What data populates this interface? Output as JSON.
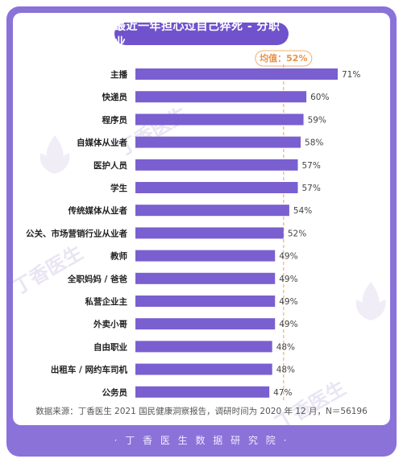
{
  "title": "最近一年担心过自己猝死 - 分职业",
  "average_label": "均值：52%",
  "average_value": 52,
  "source_note": "数据来源：丁香医生 2021 国民健康洞察报告，调研时间为 2020 年 12 月，N＝56196",
  "footer_text": "· 丁 香 医 生 数 据 研 究 院 ·",
  "watermark_text": "丁香医生",
  "colors": {
    "frame": "#8b72d9",
    "title_bg": "#6f52cc",
    "bar": "#7a5fd0",
    "average_line": "#f0b070",
    "average_text": "#e8924a"
  },
  "chart_data": {
    "type": "bar",
    "orientation": "horizontal",
    "categories": [
      "主播",
      "快递员",
      "程序员",
      "自媒体从业者",
      "医护人员",
      "学生",
      "传统媒体从业者",
      "公关、市场营销行业从业者",
      "教师",
      "全职妈妈 / 爸爸",
      "私营企业主",
      "外卖小哥",
      "自由职业",
      "出租车 / 网约车司机",
      "公务员"
    ],
    "values": [
      71,
      60,
      59,
      58,
      57,
      57,
      54,
      52,
      49,
      49,
      49,
      49,
      48,
      48,
      47
    ],
    "value_labels": [
      "71%",
      "60%",
      "59%",
      "58%",
      "57%",
      "57%",
      "54%",
      "52%",
      "49%",
      "49%",
      "49%",
      "49%",
      "48%",
      "48%",
      "47%"
    ],
    "title": "最近一年担心过自己猝死 - 分职业",
    "xlabel": "",
    "ylabel": "",
    "xlim": [
      0,
      71
    ]
  }
}
